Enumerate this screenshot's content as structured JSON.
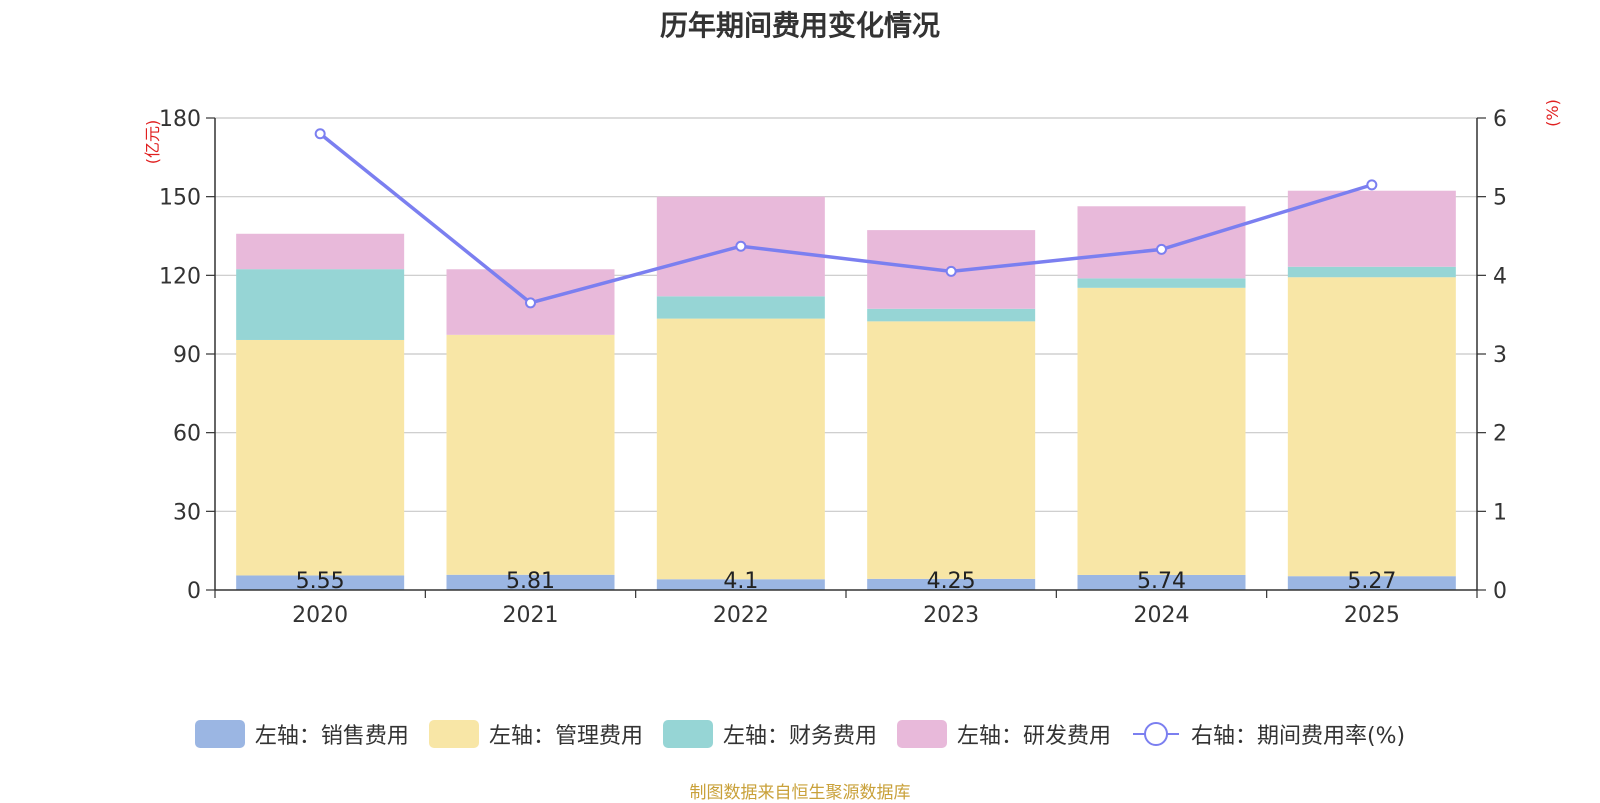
{
  "chart_data": {
    "type": "bar",
    "title": "历年期间费用变化情况",
    "categories": [
      "2020",
      "2021",
      "2022",
      "2023",
      "2024",
      "2025"
    ],
    "left_axis": {
      "unit_label": "(亿元)",
      "ylim": [
        0,
        180
      ],
      "ticks": [
        "0",
        "30",
        "60",
        "90",
        "120",
        "150",
        "180"
      ]
    },
    "right_axis": {
      "unit_label": "(%)",
      "ylim": [
        0,
        6
      ],
      "ticks": [
        "0",
        "1",
        "2",
        "3",
        "4",
        "5",
        "6"
      ]
    },
    "series": [
      {
        "name": "左轴：销售费用",
        "axis": "left",
        "kind": "bar",
        "color": "#9bb6e3",
        "values": [
          5.55,
          5.81,
          4.1,
          4.25,
          5.74,
          5.27
        ],
        "labels": [
          "5.55",
          "5.81",
          "4.1",
          "4.25",
          "5.74",
          "5.27"
        ]
      },
      {
        "name": "左轴：管理费用",
        "axis": "left",
        "kind": "bar",
        "color": "#f8e6a6",
        "values": [
          89.8,
          91.5,
          99.4,
          98.2,
          109.5,
          114.0
        ]
      },
      {
        "name": "左轴：财务费用",
        "axis": "left",
        "kind": "bar",
        "color": "#96d5d5",
        "values": [
          27.0,
          -0.2,
          8.5,
          4.8,
          3.6,
          4.0
        ]
      },
      {
        "name": "左轴：研发费用",
        "axis": "left",
        "kind": "bar",
        "color": "#e8b9da",
        "values": [
          13.5,
          25.0,
          38.0,
          30.0,
          27.5,
          29.0
        ]
      },
      {
        "name": "右轴：期间费用率(%)",
        "axis": "right",
        "kind": "line",
        "color": "#7b7ff0",
        "values": [
          5.8,
          3.65,
          4.37,
          4.05,
          4.33,
          5.15
        ]
      }
    ]
  },
  "footer": {
    "source": "制图数据来自恒生聚源数据库"
  }
}
